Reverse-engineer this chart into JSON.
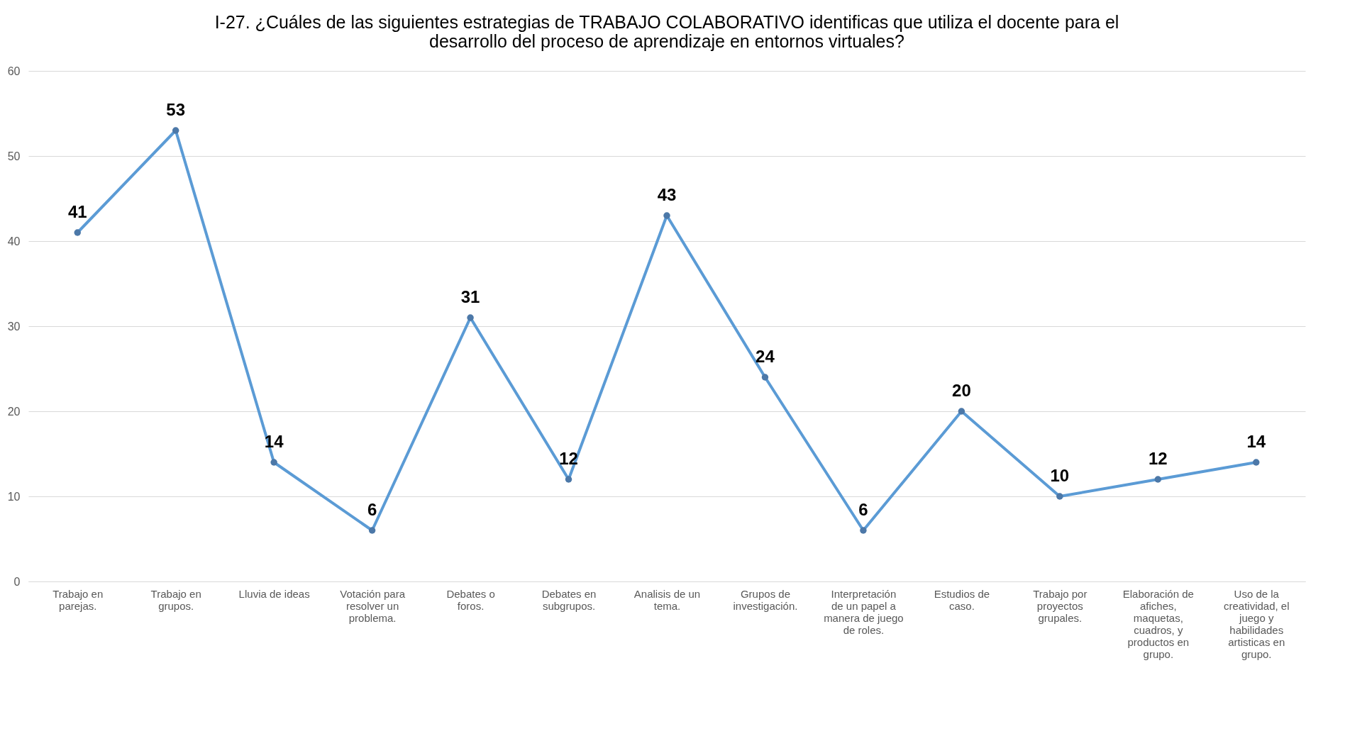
{
  "chart_data": {
    "type": "line",
    "title": "I-27. ¿Cuáles de las siguientes estrategias de TRABAJO COLABORATIVO identificas que utiliza el docente para el desarrollo del proceso de aprendizaje en entornos virtuales?",
    "categories": [
      "Trabajo en parejas.",
      "Trabajo en grupos.",
      "Lluvia de ideas",
      "Votación para resolver un problema.",
      "Debates o foros.",
      "Debates en subgrupos.",
      "Analisis de un tema.",
      "Grupos de investigación.",
      "Interpretación de un papel a manera de juego de roles.",
      "Estudios de caso.",
      "Trabajo por proyectos grupales.",
      "Elaboración de afiches, maquetas, cuadros, y productos en grupo.",
      "Uso de la creatividad, el juego y habilidades artisticas en grupo."
    ],
    "series": [
      {
        "color": "#5b9bd5",
        "values": [
          41,
          53,
          14,
          6,
          31,
          12,
          43,
          24,
          6,
          20,
          10,
          12,
          14
        ]
      }
    ],
    "ylim": [
      0,
      60
    ],
    "yticks": [
      0,
      10,
      20,
      30,
      40,
      50,
      60
    ],
    "grid": "y",
    "marker": "circle",
    "data_labels": true
  }
}
